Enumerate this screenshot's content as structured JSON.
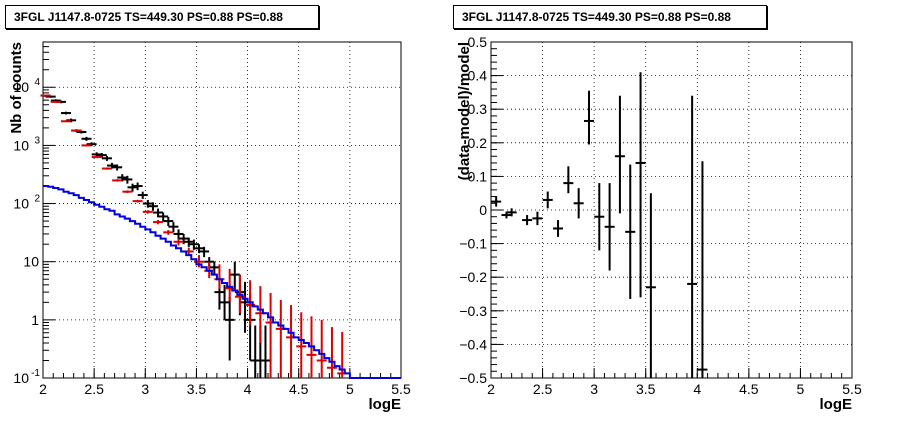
{
  "chart_data": [
    {
      "type": "scatter",
      "title": "3FGL J1147.8-0725 TS=449.30 PS=0.88 PS=0.88",
      "xlabel": "logE",
      "ylabel": "Nb of counts",
      "xlim": [
        2,
        5.5
      ],
      "ylim": [
        0.1,
        60000
      ],
      "yscale": "log",
      "grid": true,
      "x_ticks": [
        "2",
        "2.5",
        "3",
        "3.5",
        "4",
        "4.5",
        "5",
        "5.5"
      ],
      "y_ticks": [
        "10^-1",
        "1",
        "10",
        "10^2",
        "10^3",
        "10^4"
      ],
      "series": [
        {
          "color": "#000000",
          "style": "error-bar",
          "x": [
            2.025,
            2.075,
            2.125,
            2.175,
            2.225,
            2.275,
            2.325,
            2.375,
            2.425,
            2.475,
            2.525,
            2.575,
            2.625,
            2.675,
            2.725,
            2.775,
            2.825,
            2.875,
            2.925,
            2.975,
            3.025,
            3.075,
            3.125,
            3.175,
            3.225,
            3.275,
            3.325,
            3.375,
            3.425,
            3.475,
            3.525,
            3.575,
            3.625,
            3.675,
            3.725,
            3.775,
            3.825,
            3.875,
            3.925,
            3.975,
            4.025,
            4.075,
            4.125,
            4.175
          ],
          "y": [
            7200,
            6900,
            5900,
            5600,
            3600,
            2700,
            1800,
            1700,
            1300,
            1050,
            700,
            680,
            600,
            450,
            420,
            280,
            260,
            190,
            200,
            140,
            100,
            90,
            70,
            60,
            50,
            40,
            30,
            25,
            22,
            20,
            17,
            15,
            10,
            8,
            3,
            2,
            1,
            6,
            3,
            2,
            1,
            0.2,
            0.2,
            0.2
          ],
          "err_low": [
            300,
            300,
            300,
            300,
            200,
            200,
            100,
            100,
            100,
            80,
            60,
            60,
            60,
            50,
            50,
            40,
            40,
            30,
            30,
            20,
            15,
            15,
            12,
            10,
            9,
            8,
            6,
            5,
            4,
            4,
            3,
            3,
            2,
            2,
            1.5,
            1,
            0.8,
            2.8,
            1.8,
            1.4,
            0.8,
            0.1,
            0.1,
            0.1
          ],
          "err_high": [
            300,
            300,
            300,
            300,
            200,
            200,
            100,
            100,
            100,
            80,
            60,
            60,
            60,
            50,
            50,
            40,
            40,
            30,
            30,
            20,
            15,
            15,
            12,
            10,
            9,
            8,
            6,
            5,
            4,
            4,
            3,
            3,
            2,
            2,
            2.5,
            2,
            1.5,
            4,
            3,
            2.5,
            1.8,
            0.6,
            0.6,
            0.6
          ]
        },
        {
          "color": "#dd0000",
          "style": "error-bar",
          "x": [
            2.025,
            2.125,
            2.225,
            2.325,
            2.425,
            2.525,
            2.625,
            2.725,
            2.825,
            2.925,
            3.025,
            3.125,
            3.225,
            3.325,
            3.425,
            3.525,
            3.625,
            3.725,
            3.825,
            3.925,
            4.025,
            4.125,
            4.225,
            4.325,
            4.425,
            4.525,
            4.625,
            4.725,
            4.825,
            4.925
          ],
          "y": [
            7200,
            5600,
            2600,
            1800,
            1000,
            630,
            400,
            250,
            160,
            110,
            72,
            48,
            32,
            22,
            15,
            10,
            7,
            5,
            3.5,
            2.5,
            1.8,
            1.3,
            0.9,
            0.7,
            0.5,
            0.35,
            0.25,
            0.2,
            0.15,
            0.12
          ],
          "err_low": [
            200,
            150,
            80,
            60,
            40,
            25,
            18,
            12,
            8,
            6,
            5,
            4,
            3,
            3,
            2.5,
            2,
            1.8,
            1.6,
            1.4,
            1.2,
            1.0,
            0.9,
            0.8,
            0.6,
            0.4,
            0.25,
            0.15,
            0.1,
            0.05,
            0.02
          ],
          "err_high": [
            200,
            150,
            80,
            60,
            40,
            25,
            18,
            12,
            8,
            6,
            5,
            4,
            3,
            3,
            2.5,
            3,
            3,
            4,
            4,
            3.5,
            3,
            2.5,
            2,
            1.5,
            1.3,
            1.0,
            0.9,
            0.8,
            0.6,
            0.5
          ]
        },
        {
          "color": "#0000dd",
          "style": "step",
          "edges": [
            2.0,
            2.05,
            2.1,
            2.15,
            2.2,
            2.25,
            2.3,
            2.35,
            2.4,
            2.45,
            2.5,
            2.55,
            2.6,
            2.65,
            2.7,
            2.75,
            2.8,
            2.85,
            2.9,
            2.95,
            3.0,
            3.05,
            3.1,
            3.15,
            3.2,
            3.25,
            3.3,
            3.35,
            3.4,
            3.45,
            3.5,
            3.55,
            3.6,
            3.65,
            3.7,
            3.75,
            3.8,
            3.85,
            3.9,
            3.95,
            4.0,
            4.05,
            4.1,
            4.15,
            4.2,
            4.25,
            4.3,
            4.35,
            4.4,
            4.45,
            4.5,
            4.55,
            4.6,
            4.65,
            4.7,
            4.75,
            4.8,
            4.85,
            4.9,
            4.95,
            5.0,
            5.1,
            5.2,
            5.3,
            5.4,
            5.5
          ],
          "values": [
            200,
            195,
            185,
            175,
            160,
            150,
            140,
            125,
            115,
            105,
            95,
            88,
            80,
            75,
            65,
            60,
            55,
            50,
            45,
            40,
            36,
            32,
            28,
            25,
            22,
            19,
            17,
            15,
            13,
            11,
            9,
            8,
            7,
            6,
            5,
            4.3,
            3.7,
            3.2,
            2.7,
            2.3,
            2.0,
            1.7,
            1.5,
            1.3,
            1.1,
            0.9,
            0.8,
            0.7,
            0.6,
            0.5,
            0.45,
            0.4,
            0.35,
            0.3,
            0.26,
            0.22,
            0.19,
            0.16,
            0.14,
            0.12,
            0.1,
            0.1,
            0.1,
            0.1,
            0.1
          ]
        }
      ]
    },
    {
      "type": "scatter",
      "title": "3FGL J1147.8-0725 TS=449.30 PS=0.88 PS=0.88",
      "xlabel": "logE",
      "ylabel": "(data-model)/model",
      "xlim": [
        2,
        5.5
      ],
      "ylim": [
        -0.5,
        0.5
      ],
      "grid": true,
      "x_ticks": [
        "2",
        "2.5",
        "3",
        "3.5",
        "4",
        "4.5",
        "5",
        "5.5"
      ],
      "y_ticks": [
        "-0.5",
        "-0.4",
        "-0.3",
        "-0.2",
        "-0.1",
        "0",
        "0.1",
        "0.2",
        "0.3",
        "0.4",
        "0.5"
      ],
      "series": [
        {
          "color": "#000000",
          "style": "error-bar",
          "x": [
            2.05,
            2.15,
            2.2,
            2.35,
            2.45,
            2.55,
            2.65,
            2.75,
            2.85,
            2.95,
            3.05,
            3.15,
            3.25,
            3.35,
            3.45,
            3.55,
            3.95,
            4.05
          ],
          "y": [
            0.025,
            -0.015,
            -0.007,
            -0.03,
            -0.025,
            0.03,
            -0.055,
            0.08,
            0.02,
            0.265,
            -0.02,
            -0.05,
            0.16,
            -0.065,
            0.14,
            -0.23,
            -0.22,
            -0.475
          ],
          "err_low": [
            0.015,
            0.01,
            0.012,
            0.015,
            0.02,
            0.025,
            0.025,
            0.03,
            0.045,
            0.07,
            0.1,
            0.13,
            0.17,
            0.2,
            0.4,
            0.3,
            0.3,
            0.1
          ],
          "err_high": [
            0.015,
            0.01,
            0.012,
            0.015,
            0.02,
            0.025,
            0.025,
            0.05,
            0.045,
            0.09,
            0.1,
            0.13,
            0.18,
            0.2,
            0.27,
            0.28,
            0.56,
            0.62
          ]
        }
      ]
    }
  ]
}
